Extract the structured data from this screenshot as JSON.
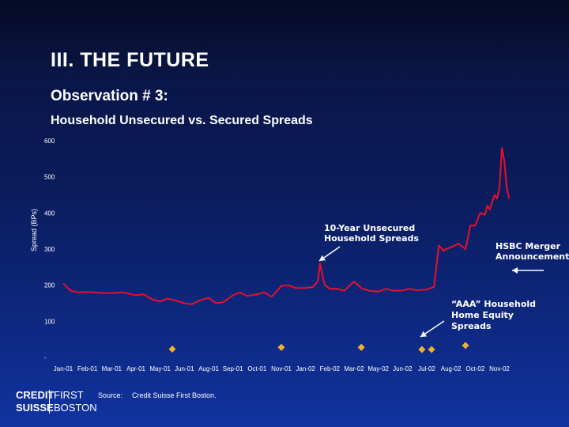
{
  "header": {
    "title": "III.  THE FUTURE",
    "observation": "Observation # 3:",
    "chart_title": "Household Unsecured vs. Secured Spreads"
  },
  "source": {
    "label": "Source:",
    "value": "Credit Suisse First Boston."
  },
  "logo": {
    "line1_a": "CREDIT",
    "line1_b": "FIRST",
    "line2_a": "SUISSE",
    "line2_b": "BOSTON"
  },
  "colors": {
    "unsecured_line": "#e8102a",
    "secured_points": "#f0b030",
    "annotation_arrow": "#ffffff"
  },
  "chart_data": {
    "type": "line",
    "ylabel": "Spread (BPs)",
    "ylim": [
      0,
      600
    ],
    "yticks": [
      "-",
      "100",
      "200",
      "300",
      "400",
      "500",
      "600"
    ],
    "categories": [
      "Jan-01",
      "Feb-01",
      "Mar-01",
      "Apr-01",
      "May-01",
      "Jun-01",
      "Aug-01",
      "Sep-01",
      "Oct-01",
      "Nov-01",
      "Jan-02",
      "Feb-02",
      "Mar-02",
      "May-02",
      "Jun-02",
      "Jul-02",
      "Aug-02",
      "Oct-02",
      "Nov-02"
    ],
    "series": [
      {
        "name": "10-Year Unsecured Household Spreads",
        "kind": "line",
        "x": [
          0,
          0.3,
          0.6,
          1,
          1.5,
          2,
          2.5,
          3,
          3.3,
          3.7,
          4,
          4.3,
          4.6,
          5,
          5.3,
          5.6,
          6,
          6.3,
          6.6,
          7,
          7.3,
          7.6,
          8,
          8.3,
          8.6,
          9,
          9.3,
          9.6,
          10,
          10.3,
          10.5,
          10.6,
          10.7,
          10.8,
          11,
          11.3,
          11.6,
          12,
          12.3,
          12.6,
          13,
          13.3,
          13.6,
          14,
          14.3,
          14.6,
          15,
          15.3,
          15.5,
          15.7,
          15.8,
          16,
          16.3,
          16.6,
          16.8,
          17,
          17.2,
          17.4,
          17.5,
          17.6,
          17.7,
          17.8,
          17.9,
          18,
          18.05,
          18.1,
          18.2,
          18.3,
          18.4
        ],
        "values": [
          205,
          185,
          180,
          181,
          179,
          178,
          180,
          172,
          175,
          160,
          155,
          163,
          158,
          150,
          147,
          157,
          165,
          150,
          153,
          172,
          180,
          170,
          175,
          180,
          168,
          198,
          200,
          192,
          192,
          195,
          210,
          260,
          225,
          200,
          190,
          190,
          185,
          210,
          192,
          185,
          182,
          190,
          185,
          185,
          190,
          186,
          188,
          195,
          310,
          295,
          300,
          305,
          315,
          300,
          365,
          365,
          400,
          395,
          420,
          410,
          430,
          450,
          440,
          470,
          520,
          580,
          545,
          470,
          440
        ]
      },
      {
        "name": "“AAA” Household Home Equity Spreads",
        "kind": "scatter",
        "x": [
          4.5,
          9.0,
          12.3,
          14.8,
          15.2,
          16.6
        ],
        "values": [
          23,
          28,
          28,
          22,
          22,
          33
        ]
      }
    ],
    "annotations": [
      {
        "text_lines": [
          "10-Year Unsecured",
          "Household Spreads"
        ]
      },
      {
        "text_lines": [
          "“AAA” Household",
          "Home Equity",
          "Spreads"
        ]
      },
      {
        "text_lines": [
          "HSBC Merger",
          "Announcement"
        ]
      }
    ],
    "grid": false,
    "legend": "none"
  }
}
